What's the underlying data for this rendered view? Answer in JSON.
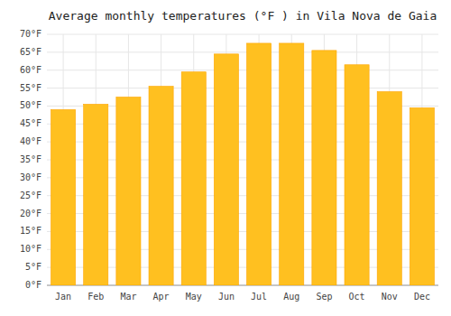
{
  "chart_data": {
    "type": "bar",
    "title": "Average monthly temperatures (°F ) in Vila Nova de Gaia",
    "categories": [
      "Jan",
      "Feb",
      "Mar",
      "Apr",
      "May",
      "Jun",
      "Jul",
      "Aug",
      "Sep",
      "Oct",
      "Nov",
      "Dec"
    ],
    "values": [
      49,
      50.5,
      52.5,
      55.5,
      59.5,
      64.5,
      67.5,
      67.5,
      65.5,
      61.5,
      54,
      49.5
    ],
    "color": "#FFC020",
    "ylim": [
      0,
      70
    ],
    "yticks": [
      {
        "value": 0,
        "label": "0°F"
      },
      {
        "value": 5,
        "label": "5°F"
      },
      {
        "value": 10,
        "label": "10°F"
      },
      {
        "value": 15,
        "label": "15°F"
      },
      {
        "value": 20,
        "label": "20°F"
      },
      {
        "value": 25,
        "label": "25°F"
      },
      {
        "value": 30,
        "label": "30°F"
      },
      {
        "value": 35,
        "label": "35°F"
      },
      {
        "value": 40,
        "label": "40°F"
      },
      {
        "value": 45,
        "label": "45°F"
      },
      {
        "value": 50,
        "label": "50°F"
      },
      {
        "value": 55,
        "label": "55°F"
      },
      {
        "value": 60,
        "label": "60°F"
      },
      {
        "value": 65,
        "label": "65°F"
      },
      {
        "value": 70,
        "label": "70°F"
      }
    ],
    "grid": true
  }
}
